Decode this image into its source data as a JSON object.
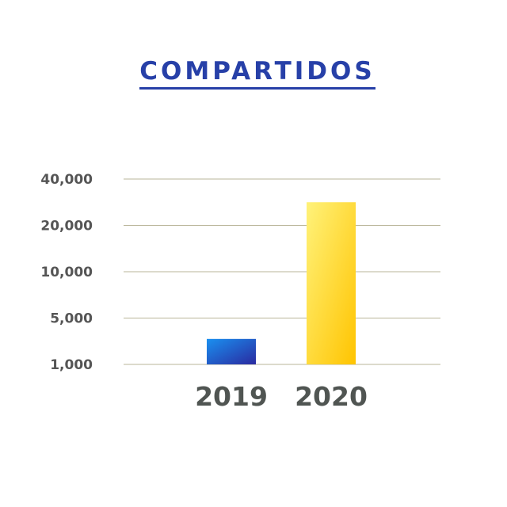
{
  "chart_data": {
    "type": "bar",
    "title": "COMPARTIDOS",
    "xlabel": "",
    "ylabel": "",
    "categories": [
      "2019",
      "2020"
    ],
    "values": [
      3200,
      30000
    ],
    "y_ticks": [
      1000,
      5000,
      10000,
      20000,
      40000
    ],
    "y_tick_labels": [
      "1,000",
      "5,000",
      "10,000",
      "20,000",
      "40,000"
    ],
    "ylim": [
      1000,
      40000
    ],
    "y_scale": "nonlinear (evenly spaced ticks)",
    "grid": true,
    "legend": "none",
    "bar_gradients": [
      [
        "#1a90f0",
        "#2a2aa0"
      ],
      [
        "#fff27a",
        "#ffc400"
      ]
    ],
    "grid_color": "#b9b59a",
    "title_color": "#2740a8",
    "label_color": "#505552"
  }
}
